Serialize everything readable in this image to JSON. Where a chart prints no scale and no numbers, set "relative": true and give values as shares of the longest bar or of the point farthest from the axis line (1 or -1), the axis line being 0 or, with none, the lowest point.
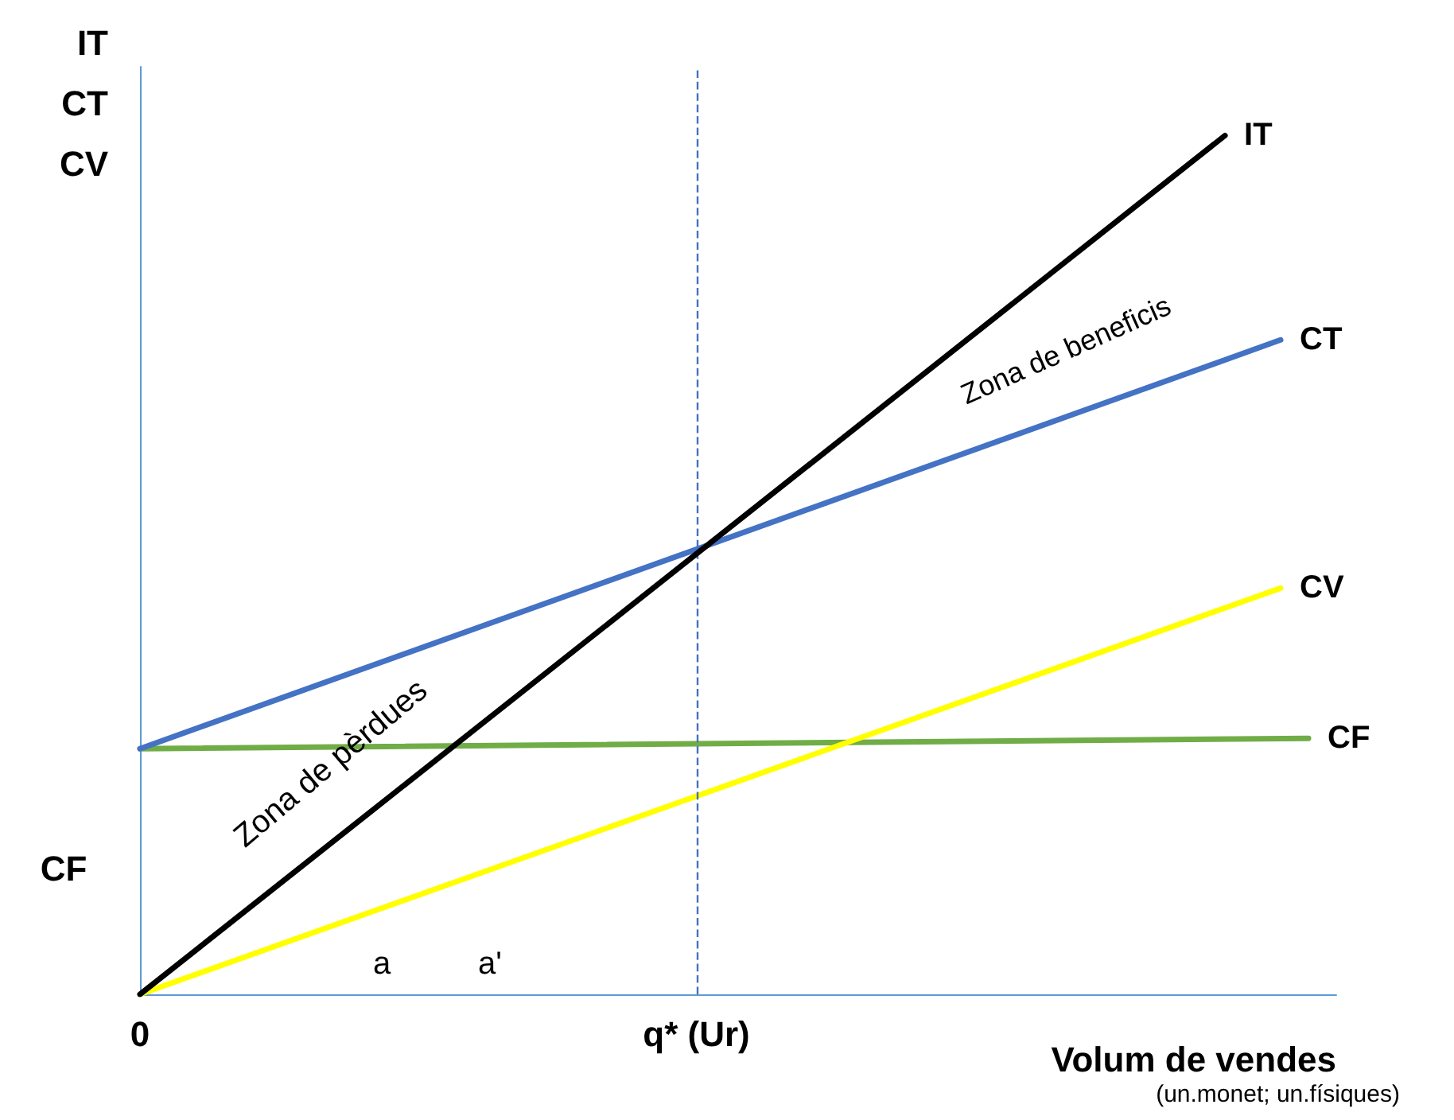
{
  "chart_data": {
    "type": "line",
    "relative": true,
    "ylabel": "IT\nCT\nCV",
    "xlabel": "Volum de vendes",
    "tick_labels": "x",
    "grid": false,
    "legend": false,
    "marker": "none",
    "line_style": "solid",
    "categories": [
      "0",
      null,
      null,
      null,
      null,
      null,
      null,
      null,
      null,
      null,
      null,
      null,
      null,
      null,
      null,
      null,
      null,
      null,
      null,
      null,
      "q* (Ur)",
      null,
      null,
      null,
      null,
      null,
      null,
      null,
      null,
      null,
      null,
      null,
      null,
      null,
      null,
      null,
      null,
      null,
      null,
      null,
      null,
      null,
      null,
      null
    ],
    "series": [
      {
        "name": "IT",
        "color": "#000000",
        "values": [
          0,
          null,
          null,
          null,
          null,
          null,
          null,
          null,
          null,
          null,
          null,
          null,
          null,
          null,
          null,
          null,
          null,
          null,
          null,
          null,
          null,
          null,
          null,
          null,
          null,
          null,
          null,
          null,
          null,
          null,
          null,
          null,
          null,
          null,
          null,
          null,
          null,
          null,
          null,
          1,
          null,
          null,
          null,
          null
        ]
      },
      {
        "name": "CT",
        "color": "#4472c4",
        "values": [
          0.286,
          null,
          null,
          null,
          null,
          null,
          null,
          null,
          null,
          null,
          null,
          null,
          null,
          null,
          null,
          null,
          null,
          null,
          null,
          null,
          null,
          null,
          null,
          null,
          null,
          null,
          null,
          null,
          null,
          null,
          null,
          null,
          null,
          null,
          null,
          null,
          null,
          null,
          null,
          null,
          null,
          0.762,
          null,
          null
        ]
      },
      {
        "name": "CV",
        "color": "#ffff00",
        "values": [
          0,
          null,
          null,
          null,
          null,
          null,
          null,
          null,
          null,
          null,
          null,
          null,
          null,
          null,
          null,
          null,
          null,
          null,
          null,
          null,
          null,
          null,
          null,
          null,
          null,
          null,
          null,
          null,
          null,
          null,
          null,
          null,
          null,
          null,
          null,
          null,
          null,
          null,
          null,
          null,
          null,
          0.473,
          null,
          null
        ]
      },
      {
        "name": "CF",
        "color": "#70ad47",
        "values": [
          0.286,
          null,
          null,
          null,
          null,
          null,
          null,
          null,
          null,
          null,
          null,
          null,
          null,
          null,
          null,
          null,
          null,
          null,
          null,
          null,
          null,
          null,
          null,
          null,
          null,
          null,
          null,
          null,
          null,
          null,
          null,
          null,
          null,
          null,
          null,
          null,
          null,
          null,
          null,
          null,
          null,
          null,
          0.298,
          null
        ]
      }
    ],
    "ref_lines": [
      {
        "axis": "x",
        "value": "q* (Ur)",
        "color": "#4472c4",
        "line_style": "dashed"
      }
    ],
    "annotations": [
      "CF",
      "(un.monet; un.físiques)",
      "Zona de pèrdues",
      "Zona de beneficis",
      "a",
      "a'"
    ]
  }
}
